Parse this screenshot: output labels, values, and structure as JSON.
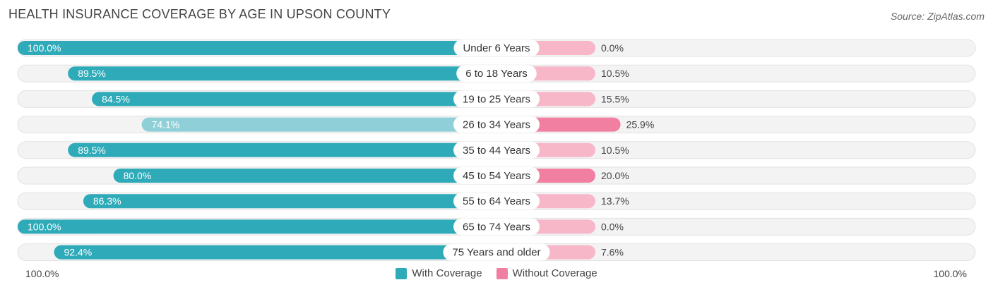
{
  "header": {
    "title": "HEALTH INSURANCE COVERAGE BY AGE IN UPSON COUNTY",
    "source": "Source: ZipAtlas.com"
  },
  "colors": {
    "with_coverage": "#2eaab8",
    "with_coverage_light": "#8fd0d8",
    "without_coverage": "#f07fa2",
    "without_coverage_light": "#f7b7c9",
    "track": "#f0f0f0"
  },
  "axis": {
    "left_label": "100.0%",
    "right_label": "100.0%"
  },
  "legend": {
    "with_label": "With Coverage",
    "without_label": "Without Coverage"
  },
  "chart_data": {
    "type": "bar",
    "orientation": "horizontal-diverging",
    "title": "HEALTH INSURANCE COVERAGE BY AGE IN UPSON COUNTY",
    "categories": [
      "Under 6 Years",
      "6 to 18 Years",
      "19 to 25 Years",
      "26 to 34 Years",
      "35 to 44 Years",
      "45 to 54 Years",
      "55 to 64 Years",
      "65 to 74 Years",
      "75 Years and older"
    ],
    "series": [
      {
        "name": "With Coverage",
        "values": [
          100.0,
          89.5,
          84.5,
          74.1,
          89.5,
          80.0,
          86.3,
          100.0,
          92.4
        ],
        "labels": [
          "100.0%",
          "89.5%",
          "84.5%",
          "74.1%",
          "89.5%",
          "80.0%",
          "86.3%",
          "100.0%",
          "92.4%"
        ]
      },
      {
        "name": "Without Coverage",
        "values": [
          0.0,
          10.5,
          15.5,
          25.9,
          10.5,
          20.0,
          13.7,
          0.0,
          7.6
        ],
        "labels": [
          "0.0%",
          "10.5%",
          "15.5%",
          "25.9%",
          "10.5%",
          "20.0%",
          "13.7%",
          "0.0%",
          "7.6%"
        ]
      }
    ],
    "xlim": [
      0,
      100
    ]
  }
}
